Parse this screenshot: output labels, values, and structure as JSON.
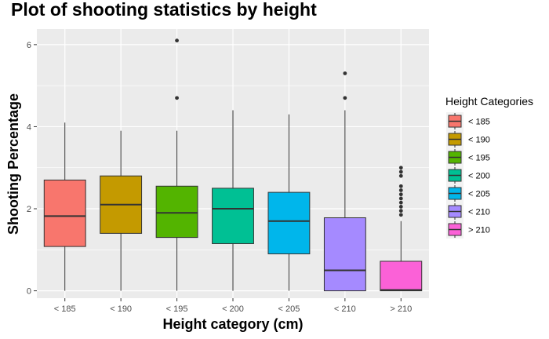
{
  "chart_data": {
    "type": "boxplot",
    "title": "Plot of shooting statistics by height",
    "xlabel": "Height category (cm)",
    "ylabel": "Shooting Percentage",
    "ylim": [
      -0.18,
      6.38
    ],
    "yticks": [
      0,
      2,
      4,
      6
    ],
    "grid": true,
    "legend_title": "Height Categories",
    "legend_position": "right",
    "categories": [
      "< 185",
      "< 190",
      "< 195",
      "< 200",
      "< 205",
      "< 210",
      "> 210"
    ],
    "colors": [
      "#F8766D",
      "#C49A00",
      "#53B400",
      "#00C094",
      "#00B6EB",
      "#A58AFF",
      "#FB61D7"
    ],
    "boxes": [
      {
        "min": 0,
        "q1": 1.08,
        "median": 1.82,
        "q3": 2.7,
        "max": 4.1,
        "outliers": []
      },
      {
        "min": 0,
        "q1": 1.4,
        "median": 2.1,
        "q3": 2.8,
        "max": 3.9,
        "outliers": []
      },
      {
        "min": 0,
        "q1": 1.3,
        "median": 1.9,
        "q3": 2.55,
        "max": 3.9,
        "outliers": [
          4.7,
          6.1
        ]
      },
      {
        "min": 0,
        "q1": 1.15,
        "median": 2.0,
        "q3": 2.5,
        "max": 4.4,
        "outliers": []
      },
      {
        "min": 0,
        "q1": 0.9,
        "median": 1.7,
        "q3": 2.4,
        "max": 4.3,
        "outliers": []
      },
      {
        "min": 0,
        "q1": 0.0,
        "median": 0.5,
        "q3": 1.78,
        "max": 4.4,
        "outliers": [
          4.7,
          5.3
        ]
      },
      {
        "min": 0,
        "q1": 0.0,
        "median": 0.02,
        "q3": 0.72,
        "max": 1.7,
        "outliers": [
          1.85,
          1.95,
          2.05,
          2.15,
          2.25,
          2.35,
          2.45,
          2.55,
          2.8,
          2.9,
          3.0
        ]
      }
    ]
  }
}
